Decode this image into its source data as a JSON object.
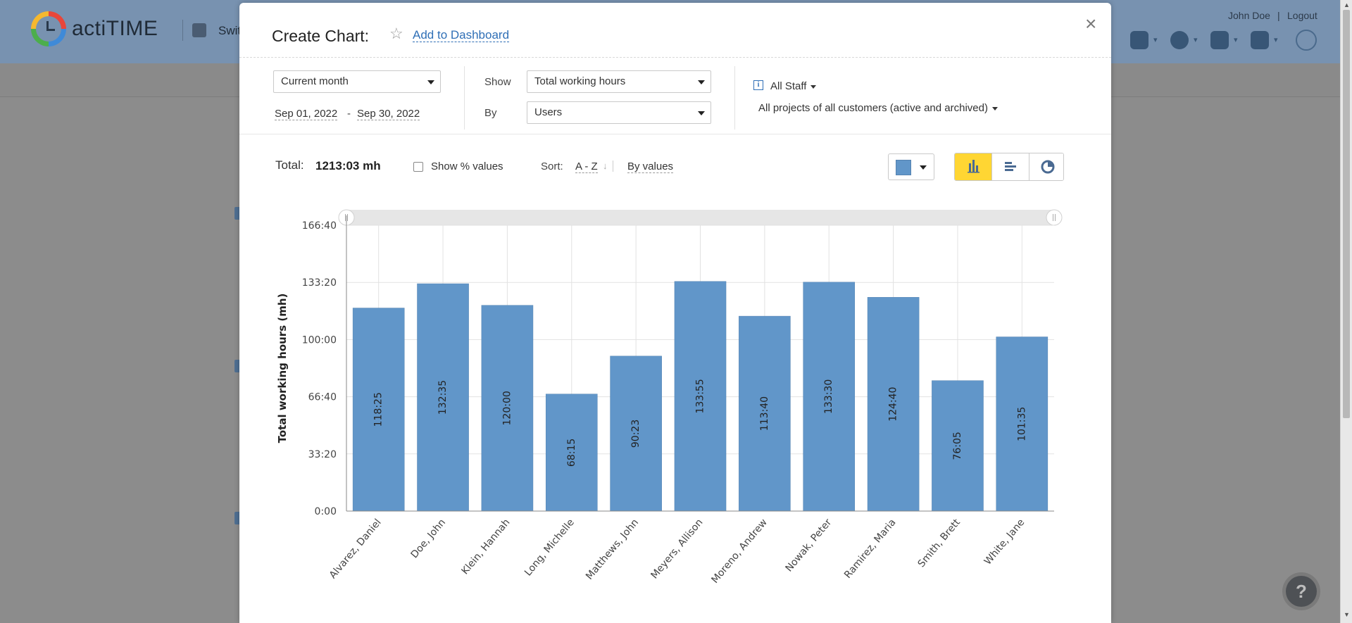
{
  "app": {
    "logo_text": "actiTIME",
    "switch_text": "Swit",
    "user_name": "John Doe",
    "user_sep": "|",
    "logout": "Logout",
    "help_fab": "?"
  },
  "modal": {
    "title": "Create Chart:",
    "add_to_dashboard": "Add to Dashboard",
    "close": "×"
  },
  "filters": {
    "period": "Current month",
    "date_from": "Sep 01, 2022",
    "date_dash": "-",
    "date_to": "Sep 30, 2022",
    "show_label": "Show",
    "show_value": "Total working hours",
    "by_label": "By",
    "by_value": "Users",
    "staff": "All Staff",
    "projects": "All projects of all customers (active and archived)"
  },
  "toolbar": {
    "total_label": "Total:",
    "total_value": "1213:03 mh",
    "show_pct_label": "Show % values",
    "sort_label": "Sort:",
    "sort_az": "A - Z",
    "sort_by_values": "By values",
    "bar_color": "#6196c9",
    "active_view": "column",
    "views": [
      "column-chart-icon",
      "bar-chart-icon",
      "pie-chart-icon"
    ]
  },
  "chart_data": {
    "type": "bar",
    "ylabel": "Total working hours (mh)",
    "y_ticks": [
      "0:00",
      "33:20",
      "66:40",
      "100:00",
      "133:20",
      "166:40"
    ],
    "ylim_minutes": [
      0,
      10000
    ],
    "categories": [
      "Alvarez, Daniel",
      "Doe, John",
      "Klein, Hannah",
      "Long, Michelle",
      "Matthews, John",
      "Meyers, Allison",
      "Moreno, Andrew",
      "Nowak, Peter",
      "Ramirez, Maria",
      "Smith, Brett",
      "White, Jane"
    ],
    "labels": [
      "118:25",
      "132:35",
      "120:00",
      "68:15",
      "90:23",
      "133:55",
      "113:40",
      "133:30",
      "124:40",
      "76:05",
      "101:35"
    ],
    "values_minutes": [
      7105,
      7955,
      7200,
      4095,
      5423,
      8035,
      6820,
      8010,
      7480,
      4565,
      6095
    ],
    "grid": true
  }
}
